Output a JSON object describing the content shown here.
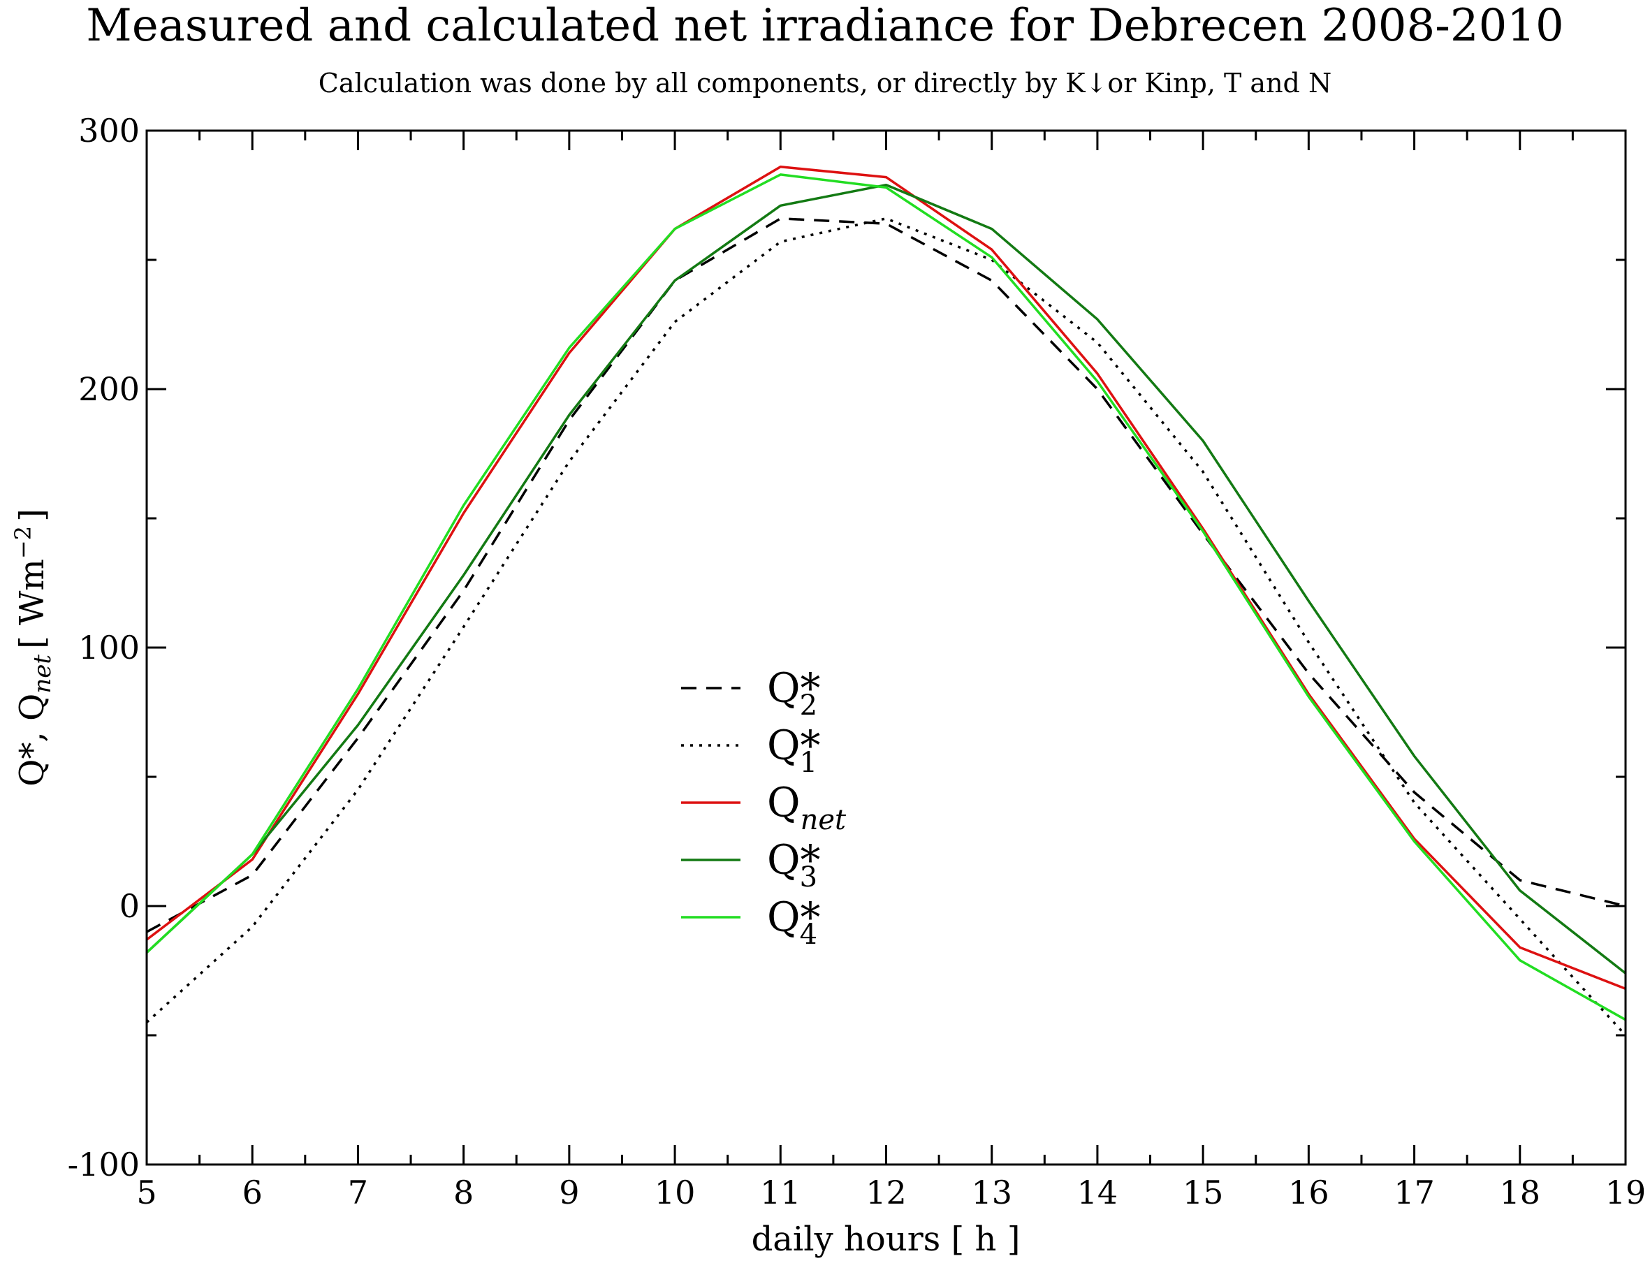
{
  "chart_data": {
    "type": "line",
    "title": "Measured and calculated net irradiance for Debrecen 2008-2010",
    "subtitle": "Calculation was done by all components, or directly by K↓or Kinp, T and N",
    "xlabel": "daily hours [ h ]",
    "ylabel": {
      "prefix": "Q*, Q",
      "subscript": "net",
      "unit_open": "[ Wm",
      "unit_exp": "−2",
      "unit_close": "]"
    },
    "xlim": [
      5,
      19
    ],
    "ylim": [
      -100,
      300
    ],
    "x_ticks": [
      5,
      6,
      7,
      8,
      9,
      10,
      11,
      12,
      13,
      14,
      15,
      16,
      17,
      18,
      19
    ],
    "x_tick_labels": [
      "5",
      "6",
      "7",
      "8",
      "9",
      "10",
      "11",
      "12",
      "13",
      "14",
      "15",
      "16",
      "17",
      "18",
      "19"
    ],
    "y_ticks": [
      -100,
      0,
      100,
      200,
      300
    ],
    "y_tick_labels": [
      "-100",
      "0",
      "100",
      "200",
      "300"
    ],
    "x": [
      5,
      6,
      7,
      8,
      9,
      10,
      11,
      12,
      13,
      14,
      15,
      16,
      17,
      18,
      19
    ],
    "series": [
      {
        "name": "Q*2",
        "base": "Q*",
        "sub": "2",
        "color": "#000000",
        "dash": "dashed",
        "values": [
          -10,
          12,
          65,
          122,
          188,
          242,
          266,
          264,
          242,
          200,
          144,
          90,
          44,
          10,
          0
        ]
      },
      {
        "name": "Q*1",
        "base": "Q*",
        "sub": "1",
        "color": "#000000",
        "dash": "dotted",
        "values": [
          -45,
          -8,
          45,
          108,
          172,
          226,
          257,
          266,
          250,
          218,
          168,
          102,
          40,
          -5,
          -50
        ]
      },
      {
        "name": "Qnet",
        "base": "Q",
        "sub": "net",
        "color": "#dd1111",
        "dash": "solid",
        "values": [
          -13,
          18,
          82,
          152,
          214,
          262,
          286,
          282,
          254,
          206,
          146,
          82,
          26,
          -16,
          -32
        ]
      },
      {
        "name": "Q*3",
        "base": "Q*",
        "sub": "3",
        "color": "#137a13",
        "dash": "solid",
        "values": [
          -18,
          20,
          70,
          128,
          190,
          242,
          271,
          279,
          262,
          227,
          180,
          118,
          58,
          6,
          -26
        ]
      },
      {
        "name": "Q*4",
        "base": "Q*",
        "sub": "4",
        "color": "#22dd22",
        "dash": "solid",
        "values": [
          -18,
          20,
          84,
          155,
          216,
          262,
          283,
          278,
          251,
          203,
          145,
          81,
          25,
          -21,
          -44
        ]
      }
    ],
    "legend_position": "center-left"
  }
}
